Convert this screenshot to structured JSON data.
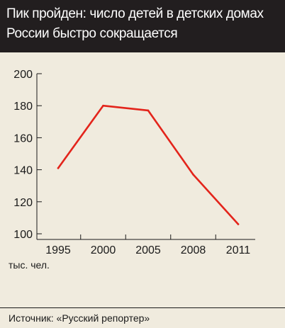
{
  "title": "Пик пройден: число детей в детских домах России быстро сокращается",
  "unit_label": "тыс. чел.",
  "source": "Источник: «Русский репортер»",
  "colors": {
    "background": "#f0ebde",
    "title_bar": "#221e1f",
    "line": "#e3241b",
    "axis": "#1a1a1a"
  },
  "chart_data": {
    "type": "line",
    "title": "Пик пройден: число детей в детских домах России быстро сокращается",
    "categories": [
      "1995",
      "2000",
      "2005",
      "2008",
      "2011"
    ],
    "series": [
      {
        "values": [
          141,
          180,
          177,
          137,
          106
        ]
      }
    ],
    "y_ticks": [
      "100",
      "120",
      "140",
      "160",
      "180",
      "200"
    ],
    "ylabel": "тыс. чел.",
    "ylim": [
      100,
      200
    ],
    "grid": false,
    "legend": "none"
  }
}
